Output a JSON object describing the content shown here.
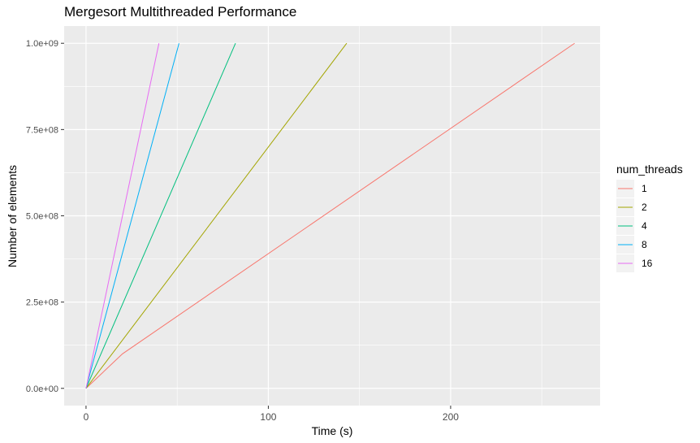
{
  "chart_data": {
    "type": "line",
    "title": "Mergesort Multithreaded Performance",
    "xlabel": "Time (s)",
    "ylabel": "Number of elements",
    "xlim": [
      -12,
      282
    ],
    "ylim": [
      -50000000,
      1050000000
    ],
    "x_ticks": [
      0,
      100,
      200
    ],
    "x_tick_labels": [
      "0",
      "100",
      "200"
    ],
    "y_ticks": [
      0,
      250000000,
      500000000,
      750000000,
      1000000000
    ],
    "y_tick_labels": [
      "0.0e+00",
      "2.5e+08",
      "5.0e+08",
      "7.5e+08",
      "1.0e+09"
    ],
    "grid": true,
    "panel_background": "#EBEBEB",
    "legend": {
      "title": "num_threads",
      "position": "right"
    },
    "series": [
      {
        "name": "1",
        "color": "#F8766D",
        "points": [
          [
            0,
            0
          ],
          [
            20,
            100000000
          ],
          [
            268,
            1000000000
          ]
        ]
      },
      {
        "name": "2",
        "color": "#A3A500",
        "points": [
          [
            0,
            0
          ],
          [
            143,
            1000000000
          ]
        ]
      },
      {
        "name": "4",
        "color": "#00BF7D",
        "points": [
          [
            0,
            0
          ],
          [
            82,
            1000000000
          ]
        ]
      },
      {
        "name": "8",
        "color": "#00B0F6",
        "points": [
          [
            0,
            0
          ],
          [
            51,
            1000000000
          ]
        ]
      },
      {
        "name": "16",
        "color": "#E76BF3",
        "points": [
          [
            0,
            0
          ],
          [
            40,
            1000000000
          ]
        ]
      }
    ]
  }
}
